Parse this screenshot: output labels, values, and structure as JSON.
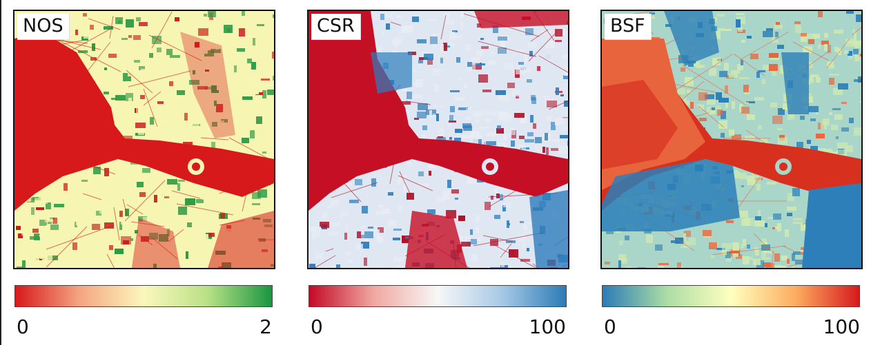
{
  "panels": [
    {
      "label": "NOS",
      "cbar_min": "0",
      "cbar_max": "2",
      "colors": {
        "water": "#d7191c",
        "mid": "#f7f5b2",
        "high": "#2f9a44",
        "dark": "#c81a1a"
      }
    },
    {
      "label": "CSR",
      "cbar_min": "0",
      "cbar_max": "100",
      "colors": {
        "water": "#c50f25",
        "mid": "#e8ecf3",
        "high": "#2e7dbc",
        "dark": "#b0122a"
      }
    },
    {
      "label": "BSF",
      "cbar_min": "0",
      "cbar_max": "100",
      "colors": {
        "water": "#d7301f",
        "mid": "#cfe9b0",
        "high": "#2c7fb8",
        "dark": "#e8643c"
      }
    }
  ],
  "colorbars": {
    "nos": [
      "#d7191c",
      "#f4a582",
      "#fbf7bc",
      "#b8e186",
      "#1a9641"
    ],
    "csr": [
      "#c40a26",
      "#f0a7a0",
      "#f7f7f7",
      "#a7c9e6",
      "#2c7bb6"
    ],
    "bsf": [
      "#2c7bb6",
      "#abdda4",
      "#ffffbf",
      "#fdae61",
      "#d7191c"
    ]
  }
}
